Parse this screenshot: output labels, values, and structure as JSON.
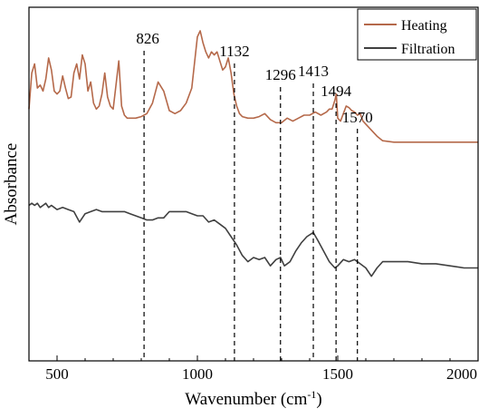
{
  "chart_data": {
    "type": "line",
    "title": "",
    "xlabel": "Wavenumber (cm",
    "xlabel_sup": "-1",
    "xlabel_close": ")",
    "ylabel": "Absorbance",
    "xlim": [
      400,
      2000
    ],
    "xticks": [
      500,
      1000,
      1500,
      2000
    ],
    "xtick_labels": [
      "500",
      "1000",
      "1500",
      "2000"
    ],
    "yticks_shown": false,
    "grid": false,
    "legend_position": "top-right",
    "peak_markers": [
      {
        "label": "826",
        "x": 810
      },
      {
        "label": "1132",
        "x": 1132
      },
      {
        "label": "1296",
        "x": 1296
      },
      {
        "label": "1413",
        "x": 1413
      },
      {
        "label": "1494",
        "x": 1494
      },
      {
        "label": "1570",
        "x": 1570
      }
    ],
    "series": [
      {
        "name": "Heating",
        "color": "#b5694a",
        "x": [
          400,
          410,
          420,
          430,
          440,
          450,
          460,
          470,
          480,
          490,
          500,
          510,
          520,
          530,
          540,
          550,
          560,
          570,
          580,
          590,
          600,
          610,
          620,
          630,
          640,
          650,
          660,
          670,
          680,
          690,
          700,
          710,
          720,
          730,
          740,
          750,
          760,
          780,
          800,
          820,
          840,
          860,
          880,
          900,
          920,
          940,
          960,
          980,
          1000,
          1010,
          1020,
          1030,
          1040,
          1050,
          1060,
          1070,
          1080,
          1090,
          1100,
          1110,
          1120,
          1130,
          1140,
          1150,
          1160,
          1180,
          1200,
          1220,
          1240,
          1260,
          1280,
          1300,
          1320,
          1340,
          1360,
          1380,
          1400,
          1420,
          1440,
          1460,
          1470,
          1480,
          1490,
          1495,
          1500,
          1510,
          1520,
          1530,
          1540,
          1550,
          1560,
          1570,
          1580,
          1590,
          1600,
          1620,
          1640,
          1660,
          1700,
          1750,
          1800,
          1850,
          1900,
          1950,
          2000
        ],
        "y": [
          0.48,
          0.72,
          0.78,
          0.62,
          0.64,
          0.6,
          0.68,
          0.82,
          0.74,
          0.6,
          0.58,
          0.6,
          0.7,
          0.62,
          0.55,
          0.56,
          0.72,
          0.78,
          0.68,
          0.84,
          0.78,
          0.6,
          0.66,
          0.52,
          0.48,
          0.5,
          0.58,
          0.72,
          0.56,
          0.5,
          0.48,
          0.64,
          0.8,
          0.5,
          0.44,
          0.42,
          0.42,
          0.42,
          0.43,
          0.45,
          0.52,
          0.66,
          0.6,
          0.47,
          0.45,
          0.47,
          0.52,
          0.62,
          0.96,
          1.0,
          0.92,
          0.86,
          0.82,
          0.86,
          0.84,
          0.86,
          0.8,
          0.74,
          0.76,
          0.82,
          0.72,
          0.58,
          0.5,
          0.45,
          0.43,
          0.42,
          0.42,
          0.43,
          0.45,
          0.41,
          0.39,
          0.39,
          0.42,
          0.4,
          0.42,
          0.44,
          0.44,
          0.46,
          0.44,
          0.46,
          0.48,
          0.48,
          0.54,
          0.58,
          0.42,
          0.4,
          0.45,
          0.5,
          0.49,
          0.47,
          0.46,
          0.44,
          0.45,
          0.4,
          0.38,
          0.34,
          0.3,
          0.27,
          0.26,
          0.26,
          0.26,
          0.26,
          0.26,
          0.26,
          0.26
        ]
      },
      {
        "name": "Filtration",
        "color": "#404040",
        "x": [
          400,
          410,
          420,
          430,
          440,
          450,
          460,
          470,
          480,
          490,
          500,
          520,
          540,
          560,
          580,
          600,
          620,
          640,
          660,
          680,
          700,
          720,
          740,
          760,
          780,
          800,
          820,
          840,
          860,
          880,
          900,
          920,
          940,
          960,
          980,
          1000,
          1020,
          1040,
          1060,
          1080,
          1100,
          1120,
          1140,
          1160,
          1180,
          1200,
          1220,
          1240,
          1260,
          1280,
          1296,
          1310,
          1330,
          1350,
          1370,
          1390,
          1413,
          1430,
          1450,
          1470,
          1490,
          1500,
          1520,
          1540,
          1560,
          1580,
          1600,
          1620,
          1640,
          1660,
          1700,
          1750,
          1800,
          1850,
          1900,
          1950,
          2000
        ],
        "y": [
          0.05,
          0.06,
          0.05,
          0.06,
          0.04,
          0.05,
          0.06,
          0.04,
          0.05,
          0.04,
          0.03,
          0.04,
          0.03,
          0.02,
          -0.03,
          0.01,
          0.02,
          0.03,
          0.02,
          0.02,
          0.02,
          0.02,
          0.02,
          0.01,
          0.0,
          -0.01,
          -0.02,
          -0.02,
          -0.01,
          -0.01,
          0.02,
          0.02,
          0.02,
          0.02,
          0.01,
          0.0,
          0.0,
          -0.03,
          -0.02,
          -0.04,
          -0.06,
          -0.1,
          -0.14,
          -0.19,
          -0.22,
          -0.2,
          -0.21,
          -0.2,
          -0.24,
          -0.21,
          -0.2,
          -0.24,
          -0.22,
          -0.17,
          -0.13,
          -0.1,
          -0.08,
          -0.12,
          -0.17,
          -0.22,
          -0.25,
          -0.24,
          -0.21,
          -0.22,
          -0.21,
          -0.23,
          -0.25,
          -0.29,
          -0.25,
          -0.22,
          -0.22,
          -0.22,
          -0.23,
          -0.23,
          -0.24,
          -0.25,
          -0.25
        ]
      }
    ]
  }
}
